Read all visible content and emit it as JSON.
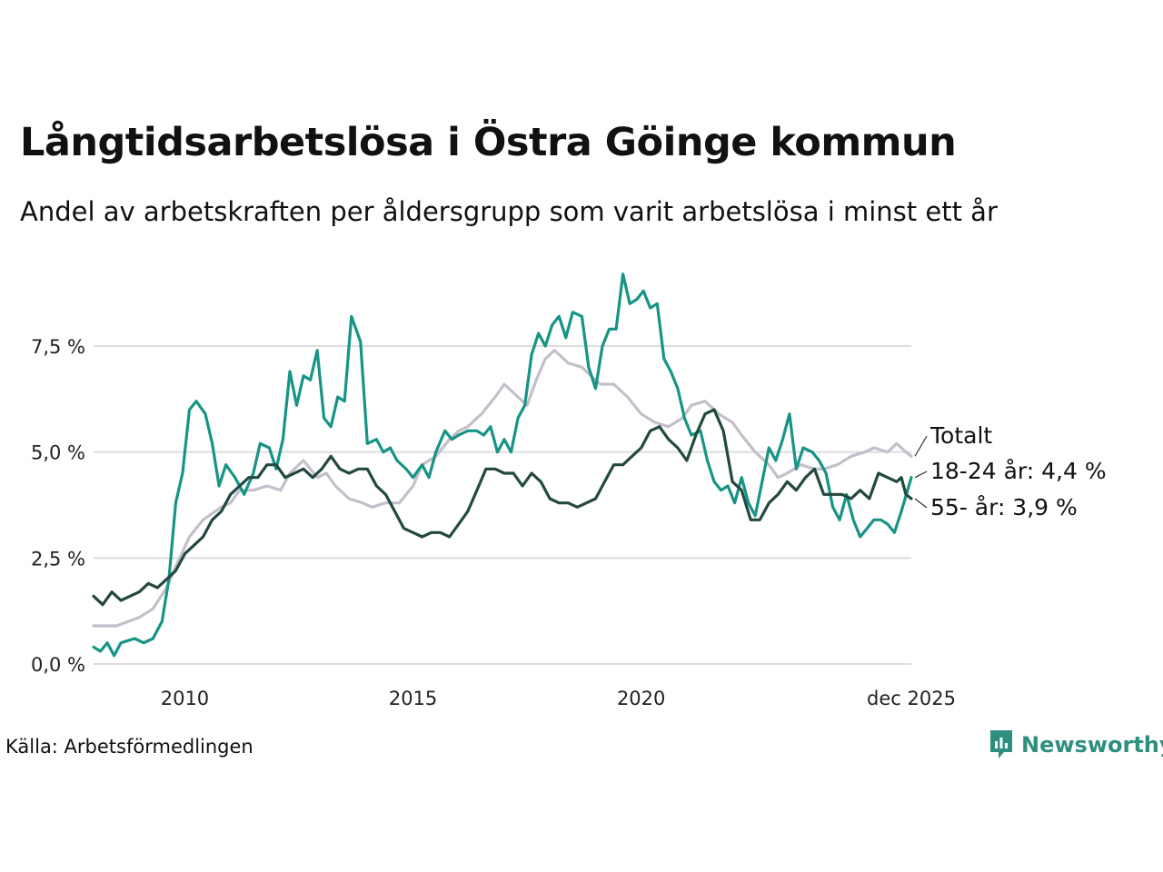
{
  "header": {
    "title": "Långtidsarbetslösa i Östra Göinge kommun",
    "subtitle": "Andel av arbetskraften per åldersgrupp som varit arbetslösa i minst ett år"
  },
  "footer": {
    "source": "Källa: Arbetsförmedlingen",
    "brand": "Newsworthy"
  },
  "colors": {
    "totalt": "#c3bfcb",
    "young": "#179485",
    "old": "#23493f",
    "grid": "#dddddd",
    "brand": "#2f8f7f"
  },
  "chart_data": {
    "type": "line",
    "title": "Långtidsarbetslösa i Östra Göinge kommun",
    "subtitle": "Andel av arbetskraften per åldersgrupp som varit arbetslösa i minst ett år",
    "xlabel": "",
    "ylabel": "",
    "x_range": [
      2008.0,
      2025.92
    ],
    "ylim": [
      0,
      9.3
    ],
    "y_ticks": [
      0,
      2.5,
      5.0,
      7.5
    ],
    "y_tick_labels": [
      "0,0 %",
      "2,5 %",
      "5,0 %",
      "7,5 %"
    ],
    "x_ticks": [
      2010,
      2015,
      2020,
      2025.92
    ],
    "x_tick_labels": [
      "2010",
      "2015",
      "2020",
      "dec 2025"
    ],
    "grid": true,
    "series": [
      {
        "name": "Totalt",
        "label": "Totalt",
        "color": "#c3bfcb",
        "points": [
          [
            2008.0,
            0.9
          ],
          [
            2008.5,
            0.9
          ],
          [
            2009.0,
            1.1
          ],
          [
            2009.3,
            1.3
          ],
          [
            2009.6,
            1.8
          ],
          [
            2009.8,
            2.3
          ],
          [
            2010.1,
            3.0
          ],
          [
            2010.4,
            3.4
          ],
          [
            2010.8,
            3.7
          ],
          [
            2011.0,
            3.8
          ],
          [
            2011.2,
            4.1
          ],
          [
            2011.5,
            4.1
          ],
          [
            2011.8,
            4.2
          ],
          [
            2012.1,
            4.1
          ],
          [
            2012.3,
            4.5
          ],
          [
            2012.6,
            4.8
          ],
          [
            2012.9,
            4.4
          ],
          [
            2013.1,
            4.5
          ],
          [
            2013.3,
            4.2
          ],
          [
            2013.6,
            3.9
          ],
          [
            2013.9,
            3.8
          ],
          [
            2014.1,
            3.7
          ],
          [
            2014.4,
            3.8
          ],
          [
            2014.7,
            3.8
          ],
          [
            2015.0,
            4.2
          ],
          [
            2015.2,
            4.7
          ],
          [
            2015.5,
            4.9
          ],
          [
            2015.8,
            5.3
          ],
          [
            2016.0,
            5.5
          ],
          [
            2016.2,
            5.6
          ],
          [
            2016.5,
            5.9
          ],
          [
            2016.8,
            6.3
          ],
          [
            2017.0,
            6.6
          ],
          [
            2017.3,
            6.3
          ],
          [
            2017.5,
            6.1
          ],
          [
            2017.7,
            6.7
          ],
          [
            2017.9,
            7.2
          ],
          [
            2018.1,
            7.4
          ],
          [
            2018.4,
            7.1
          ],
          [
            2018.7,
            7.0
          ],
          [
            2018.9,
            6.8
          ],
          [
            2019.1,
            6.6
          ],
          [
            2019.4,
            6.6
          ],
          [
            2019.7,
            6.3
          ],
          [
            2020.0,
            5.9
          ],
          [
            2020.3,
            5.7
          ],
          [
            2020.6,
            5.6
          ],
          [
            2020.9,
            5.8
          ],
          [
            2021.1,
            6.1
          ],
          [
            2021.4,
            6.2
          ],
          [
            2021.7,
            5.9
          ],
          [
            2022.0,
            5.7
          ],
          [
            2022.2,
            5.4
          ],
          [
            2022.5,
            5.0
          ],
          [
            2022.8,
            4.7
          ],
          [
            2023.0,
            4.4
          ],
          [
            2023.2,
            4.5
          ],
          [
            2023.5,
            4.7
          ],
          [
            2023.8,
            4.6
          ],
          [
            2024.0,
            4.6
          ],
          [
            2024.3,
            4.7
          ],
          [
            2024.6,
            4.9
          ],
          [
            2024.9,
            5.0
          ],
          [
            2025.1,
            5.1
          ],
          [
            2025.4,
            5.0
          ],
          [
            2025.6,
            5.2
          ],
          [
            2025.8,
            5.0
          ],
          [
            2025.92,
            4.9
          ]
        ]
      },
      {
        "name": "18-24 år",
        "label": "18-24 år: 4,4 %",
        "color": "#179485",
        "points": [
          [
            2008.0,
            0.4
          ],
          [
            2008.15,
            0.3
          ],
          [
            2008.3,
            0.5
          ],
          [
            2008.45,
            0.2
          ],
          [
            2008.6,
            0.5
          ],
          [
            2008.9,
            0.6
          ],
          [
            2009.1,
            0.5
          ],
          [
            2009.3,
            0.6
          ],
          [
            2009.5,
            1.0
          ],
          [
            2009.65,
            2.0
          ],
          [
            2009.8,
            3.8
          ],
          [
            2009.95,
            4.5
          ],
          [
            2010.1,
            6.0
          ],
          [
            2010.25,
            6.2
          ],
          [
            2010.45,
            5.9
          ],
          [
            2010.6,
            5.2
          ],
          [
            2010.75,
            4.2
          ],
          [
            2010.9,
            4.7
          ],
          [
            2011.1,
            4.4
          ],
          [
            2011.3,
            4.0
          ],
          [
            2011.5,
            4.5
          ],
          [
            2011.65,
            5.2
          ],
          [
            2011.85,
            5.1
          ],
          [
            2012.0,
            4.6
          ],
          [
            2012.15,
            5.3
          ],
          [
            2012.3,
            6.9
          ],
          [
            2012.45,
            6.1
          ],
          [
            2012.6,
            6.8
          ],
          [
            2012.75,
            6.7
          ],
          [
            2012.9,
            7.4
          ],
          [
            2013.05,
            5.8
          ],
          [
            2013.2,
            5.6
          ],
          [
            2013.35,
            6.3
          ],
          [
            2013.5,
            6.2
          ],
          [
            2013.65,
            8.2
          ],
          [
            2013.85,
            7.6
          ],
          [
            2014.0,
            5.2
          ],
          [
            2014.2,
            5.3
          ],
          [
            2014.35,
            5.0
          ],
          [
            2014.5,
            5.1
          ],
          [
            2014.65,
            4.8
          ],
          [
            2014.85,
            4.6
          ],
          [
            2015.0,
            4.4
          ],
          [
            2015.2,
            4.7
          ],
          [
            2015.35,
            4.4
          ],
          [
            2015.5,
            5.0
          ],
          [
            2015.7,
            5.5
          ],
          [
            2015.85,
            5.3
          ],
          [
            2016.0,
            5.4
          ],
          [
            2016.2,
            5.5
          ],
          [
            2016.4,
            5.5
          ],
          [
            2016.55,
            5.4
          ],
          [
            2016.7,
            5.6
          ],
          [
            2016.85,
            5.0
          ],
          [
            2017.0,
            5.3
          ],
          [
            2017.15,
            5.0
          ],
          [
            2017.3,
            5.8
          ],
          [
            2017.45,
            6.1
          ],
          [
            2017.6,
            7.3
          ],
          [
            2017.75,
            7.8
          ],
          [
            2017.9,
            7.5
          ],
          [
            2018.05,
            8.0
          ],
          [
            2018.2,
            8.2
          ],
          [
            2018.35,
            7.7
          ],
          [
            2018.5,
            8.3
          ],
          [
            2018.7,
            8.2
          ],
          [
            2018.85,
            7.0
          ],
          [
            2019.0,
            6.5
          ],
          [
            2019.15,
            7.5
          ],
          [
            2019.3,
            7.9
          ],
          [
            2019.45,
            7.9
          ],
          [
            2019.6,
            9.2
          ],
          [
            2019.75,
            8.5
          ],
          [
            2019.9,
            8.6
          ],
          [
            2020.05,
            8.8
          ],
          [
            2020.2,
            8.4
          ],
          [
            2020.35,
            8.5
          ],
          [
            2020.5,
            7.2
          ],
          [
            2020.65,
            6.9
          ],
          [
            2020.8,
            6.5
          ],
          [
            2020.95,
            5.8
          ],
          [
            2021.1,
            5.4
          ],
          [
            2021.3,
            5.5
          ],
          [
            2021.45,
            4.8
          ],
          [
            2021.6,
            4.3
          ],
          [
            2021.75,
            4.1
          ],
          [
            2021.9,
            4.2
          ],
          [
            2022.05,
            3.8
          ],
          [
            2022.2,
            4.4
          ],
          [
            2022.35,
            3.8
          ],
          [
            2022.5,
            3.5
          ],
          [
            2022.65,
            4.3
          ],
          [
            2022.8,
            5.1
          ],
          [
            2022.95,
            4.8
          ],
          [
            2023.1,
            5.3
          ],
          [
            2023.25,
            5.9
          ],
          [
            2023.4,
            4.6
          ],
          [
            2023.55,
            5.1
          ],
          [
            2023.75,
            5.0
          ],
          [
            2023.9,
            4.8
          ],
          [
            2024.05,
            4.5
          ],
          [
            2024.2,
            3.7
          ],
          [
            2024.35,
            3.4
          ],
          [
            2024.5,
            4.0
          ],
          [
            2024.65,
            3.4
          ],
          [
            2024.8,
            3.0
          ],
          [
            2024.95,
            3.2
          ],
          [
            2025.1,
            3.4
          ],
          [
            2025.25,
            3.4
          ],
          [
            2025.4,
            3.3
          ],
          [
            2025.55,
            3.1
          ],
          [
            2025.7,
            3.6
          ],
          [
            2025.92,
            4.4
          ]
        ]
      },
      {
        "name": "55- år",
        "label": "55- år: 3,9 %",
        "color": "#23493f",
        "points": [
          [
            2008.0,
            1.6
          ],
          [
            2008.2,
            1.4
          ],
          [
            2008.4,
            1.7
          ],
          [
            2008.6,
            1.5
          ],
          [
            2008.8,
            1.6
          ],
          [
            2009.0,
            1.7
          ],
          [
            2009.2,
            1.9
          ],
          [
            2009.4,
            1.8
          ],
          [
            2009.6,
            2.0
          ],
          [
            2009.8,
            2.2
          ],
          [
            2010.0,
            2.6
          ],
          [
            2010.2,
            2.8
          ],
          [
            2010.4,
            3.0
          ],
          [
            2010.6,
            3.4
          ],
          [
            2010.8,
            3.6
          ],
          [
            2011.0,
            4.0
          ],
          [
            2011.2,
            4.2
          ],
          [
            2011.4,
            4.4
          ],
          [
            2011.6,
            4.4
          ],
          [
            2011.8,
            4.7
          ],
          [
            2012.0,
            4.7
          ],
          [
            2012.2,
            4.4
          ],
          [
            2012.4,
            4.5
          ],
          [
            2012.6,
            4.6
          ],
          [
            2012.8,
            4.4
          ],
          [
            2013.0,
            4.6
          ],
          [
            2013.2,
            4.9
          ],
          [
            2013.4,
            4.6
          ],
          [
            2013.6,
            4.5
          ],
          [
            2013.8,
            4.6
          ],
          [
            2014.0,
            4.6
          ],
          [
            2014.2,
            4.2
          ],
          [
            2014.4,
            4.0
          ],
          [
            2014.6,
            3.6
          ],
          [
            2014.8,
            3.2
          ],
          [
            2015.0,
            3.1
          ],
          [
            2015.2,
            3.0
          ],
          [
            2015.4,
            3.1
          ],
          [
            2015.6,
            3.1
          ],
          [
            2015.8,
            3.0
          ],
          [
            2016.0,
            3.3
          ],
          [
            2016.2,
            3.6
          ],
          [
            2016.4,
            4.1
          ],
          [
            2016.6,
            4.6
          ],
          [
            2016.8,
            4.6
          ],
          [
            2017.0,
            4.5
          ],
          [
            2017.2,
            4.5
          ],
          [
            2017.4,
            4.2
          ],
          [
            2017.6,
            4.5
          ],
          [
            2017.8,
            4.3
          ],
          [
            2018.0,
            3.9
          ],
          [
            2018.2,
            3.8
          ],
          [
            2018.4,
            3.8
          ],
          [
            2018.6,
            3.7
          ],
          [
            2018.8,
            3.8
          ],
          [
            2019.0,
            3.9
          ],
          [
            2019.2,
            4.3
          ],
          [
            2019.4,
            4.7
          ],
          [
            2019.6,
            4.7
          ],
          [
            2019.8,
            4.9
          ],
          [
            2020.0,
            5.1
          ],
          [
            2020.2,
            5.5
          ],
          [
            2020.4,
            5.6
          ],
          [
            2020.6,
            5.3
          ],
          [
            2020.8,
            5.1
          ],
          [
            2021.0,
            4.8
          ],
          [
            2021.2,
            5.4
          ],
          [
            2021.4,
            5.9
          ],
          [
            2021.6,
            6.0
          ],
          [
            2021.8,
            5.5
          ],
          [
            2022.0,
            4.3
          ],
          [
            2022.2,
            4.1
          ],
          [
            2022.4,
            3.4
          ],
          [
            2022.6,
            3.4
          ],
          [
            2022.8,
            3.8
          ],
          [
            2023.0,
            4.0
          ],
          [
            2023.2,
            4.3
          ],
          [
            2023.4,
            4.1
          ],
          [
            2023.6,
            4.4
          ],
          [
            2023.8,
            4.6
          ],
          [
            2024.0,
            4.0
          ],
          [
            2024.2,
            4.0
          ],
          [
            2024.4,
            4.0
          ],
          [
            2024.6,
            3.9
          ],
          [
            2024.8,
            4.1
          ],
          [
            2025.0,
            3.9
          ],
          [
            2025.2,
            4.5
          ],
          [
            2025.4,
            4.4
          ],
          [
            2025.6,
            4.3
          ],
          [
            2025.7,
            4.4
          ],
          [
            2025.8,
            4.0
          ],
          [
            2025.92,
            3.9
          ]
        ]
      }
    ]
  }
}
